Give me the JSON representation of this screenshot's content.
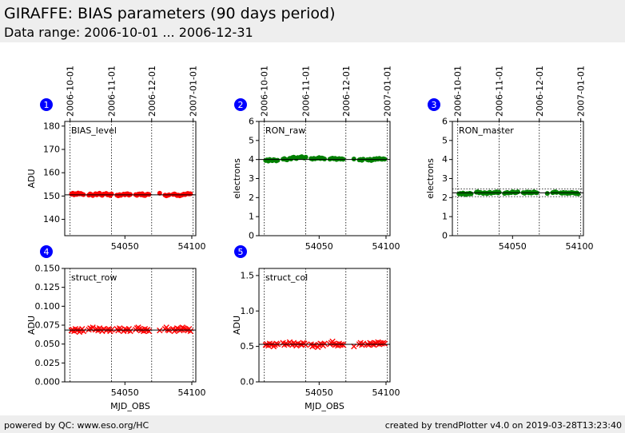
{
  "header": {
    "title": "GIRAFFE: BIAS parameters (90 days period)",
    "subtitle": "Data range: 2006-10-01 ... 2006-12-31"
  },
  "footer": {
    "left": "powered by QC: www.eso.org/HC",
    "right": "created by trendPlotter v4.0 on 2019-03-28T13:23:40"
  },
  "colors": {
    "marker_red": "#ff0000",
    "marker_green": "#008000",
    "badge": "#0000ff"
  },
  "chart_data": [
    {
      "id": 1,
      "type": "scatter",
      "label": "BIAS_level",
      "ylabel": "ADU",
      "xlabel": "",
      "marker": "circle",
      "color": "#ff0000",
      "xlim": [
        54005,
        54103
      ],
      "ylim": [
        133,
        182
      ],
      "yticks": [
        "140",
        "150",
        "160",
        "170",
        "180"
      ],
      "ytick_values": [
        140,
        150,
        160,
        170,
        180
      ],
      "xticks": [
        "54050",
        "54100"
      ],
      "xtick_values": [
        54050,
        54100
      ],
      "show_xtick_labels": true,
      "date_ticks": [
        "2006-10-01",
        "2006-11-01",
        "2006-12-01",
        "2007-01-01"
      ],
      "show_date_ticks": true,
      "hlines": [
        150.5
      ],
      "hlines_dotted": [],
      "x": [
        54010,
        54011,
        54012,
        54013,
        54014,
        54015,
        54016,
        54017,
        54018,
        54019,
        54023,
        54024,
        54025,
        54026,
        54028,
        54029,
        54030,
        54031,
        54032,
        54033,
        54034,
        54036,
        54037,
        54038,
        54039,
        54040,
        54044,
        54045,
        54046,
        54047,
        54049,
        54050,
        54051,
        54052,
        54053,
        54054,
        54058,
        54059,
        54060,
        54061,
        54062,
        54063,
        54064,
        54065,
        54066,
        54067,
        54068,
        54076,
        54080,
        54081,
        54082,
        54083,
        54086,
        54087,
        54088,
        54089,
        54090,
        54091,
        54092,
        54093,
        54094,
        54095,
        54096,
        54097,
        54098,
        54099
      ],
      "y": [
        150.8,
        151.2,
        150.5,
        151.0,
        150.7,
        151.3,
        150.9,
        151.1,
        150.8,
        150.6,
        150.4,
        150.9,
        150.6,
        150.2,
        151.0,
        150.5,
        150.9,
        151.2,
        150.6,
        150.3,
        150.8,
        151.1,
        150.5,
        150.7,
        150.2,
        150.9,
        150.4,
        150.1,
        150.6,
        150.3,
        150.8,
        150.5,
        150.9,
        151.0,
        150.4,
        150.7,
        150.6,
        150.3,
        150.8,
        150.9,
        150.5,
        151.0,
        150.3,
        150.2,
        150.6,
        150.8,
        150.7,
        151.2,
        150.4,
        150.1,
        150.3,
        150.5,
        150.7,
        150.9,
        150.6,
        150.2,
        150.4,
        150.1,
        150.3,
        150.5,
        150.8,
        150.6,
        150.9,
        151.1,
        150.9,
        151.0
      ]
    },
    {
      "id": 2,
      "type": "scatter",
      "label": "RON_raw",
      "ylabel": "electrons",
      "xlabel": "",
      "marker": "circle",
      "color": "#008000",
      "xlim": [
        54005,
        54103
      ],
      "ylim": [
        0,
        6
      ],
      "yticks": [
        "0",
        "1",
        "2",
        "3",
        "4",
        "5",
        "6"
      ],
      "ytick_values": [
        0,
        1,
        2,
        3,
        4,
        5,
        6
      ],
      "xticks": [
        "54050",
        "54100"
      ],
      "xtick_values": [
        54050,
        54100
      ],
      "show_xtick_labels": true,
      "date_ticks": [
        "2006-10-01",
        "2006-11-01",
        "2006-12-01",
        "2007-01-01"
      ],
      "show_date_ticks": true,
      "hlines": [
        4.0
      ],
      "hlines_dotted": [],
      "x": [
        54010,
        54011,
        54012,
        54013,
        54014,
        54015,
        54016,
        54017,
        54018,
        54019,
        54023,
        54024,
        54025,
        54026,
        54028,
        54029,
        54030,
        54031,
        54032,
        54033,
        54034,
        54036,
        54037,
        54038,
        54039,
        54040,
        54044,
        54045,
        54046,
        54047,
        54049,
        54050,
        54051,
        54052,
        54053,
        54054,
        54058,
        54059,
        54060,
        54061,
        54062,
        54063,
        54064,
        54065,
        54066,
        54067,
        54068,
        54076,
        54080,
        54081,
        54082,
        54083,
        54086,
        54087,
        54088,
        54089,
        54090,
        54091,
        54092,
        54093,
        54094,
        54095,
        54096,
        54097,
        54098,
        54099
      ],
      "y": [
        3.95,
        3.98,
        3.92,
        4.0,
        3.96,
        3.94,
        3.99,
        3.97,
        3.93,
        3.96,
        4.02,
        4.05,
        4.0,
        3.98,
        4.06,
        4.03,
        4.1,
        4.12,
        4.08,
        4.05,
        4.1,
        4.12,
        4.15,
        4.1,
        4.08,
        4.12,
        4.05,
        4.02,
        4.06,
        4.04,
        4.07,
        4.1,
        4.05,
        4.08,
        4.06,
        4.03,
        4.02,
        4.05,
        4.07,
        4.04,
        4.06,
        4.0,
        4.03,
        4.05,
        4.02,
        4.04,
        4.01,
        4.03,
        3.98,
        4.0,
        3.96,
        4.02,
        3.99,
        3.97,
        4.01,
        3.95,
        3.98,
        4.03,
        4.0,
        4.05,
        4.02,
        4.06,
        4.03,
        4.01,
        4.04,
        4.02
      ]
    },
    {
      "id": 3,
      "type": "scatter",
      "label": "RON_master",
      "ylabel": "electrons",
      "xlabel": "",
      "marker": "circle",
      "color": "#008000",
      "xlim": [
        54005,
        54103
      ],
      "ylim": [
        0,
        6
      ],
      "yticks": [
        "0",
        "1",
        "2",
        "3",
        "4",
        "5",
        "6"
      ],
      "ytick_values": [
        0,
        1,
        2,
        3,
        4,
        5,
        6
      ],
      "xticks": [
        "54050",
        "54100"
      ],
      "xtick_values": [
        54050,
        54100
      ],
      "show_xtick_labels": true,
      "date_ticks": [
        "2006-10-01",
        "2006-11-01",
        "2006-12-01",
        "2007-01-01"
      ],
      "show_date_ticks": true,
      "hlines": [
        2.25
      ],
      "hlines_dotted": [
        2.05,
        2.45
      ],
      "x": [
        54010,
        54011,
        54012,
        54013,
        54014,
        54015,
        54016,
        54017,
        54018,
        54019,
        54023,
        54024,
        54025,
        54026,
        54028,
        54029,
        54030,
        54031,
        54032,
        54033,
        54034,
        54036,
        54037,
        54038,
        54039,
        54040,
        54044,
        54045,
        54046,
        54047,
        54049,
        54050,
        54051,
        54052,
        54053,
        54054,
        54058,
        54059,
        54060,
        54061,
        54062,
        54063,
        54064,
        54065,
        54066,
        54067,
        54068,
        54076,
        54080,
        54081,
        54082,
        54083,
        54086,
        54087,
        54088,
        54089,
        54090,
        54091,
        54092,
        54093,
        54094,
        54095,
        54096,
        54097,
        54098,
        54099
      ],
      "y": [
        2.2,
        2.22,
        2.18,
        2.24,
        2.2,
        2.16,
        2.21,
        2.19,
        2.23,
        2.2,
        2.28,
        2.3,
        2.25,
        2.27,
        2.22,
        2.26,
        2.24,
        2.21,
        2.25,
        2.28,
        2.23,
        2.26,
        2.27,
        2.3,
        2.25,
        2.28,
        2.22,
        2.25,
        2.27,
        2.24,
        2.26,
        2.3,
        2.28,
        2.25,
        2.27,
        2.3,
        2.26,
        2.23,
        2.27,
        2.29,
        2.25,
        2.28,
        2.24,
        2.26,
        2.3,
        2.27,
        2.25,
        2.22,
        2.26,
        2.28,
        2.3,
        2.27,
        2.25,
        2.23,
        2.27,
        2.24,
        2.26,
        2.22,
        2.25,
        2.23,
        2.27,
        2.26,
        2.24,
        2.22,
        2.25,
        2.2
      ]
    },
    {
      "id": 4,
      "type": "scatter",
      "label": "struct_row",
      "ylabel": "ADU",
      "xlabel": "MJD_OBS",
      "marker": "x",
      "color": "#ff0000",
      "xlim": [
        54005,
        54103
      ],
      "ylim": [
        0,
        0.15
      ],
      "yticks": [
        "0.000",
        "0.025",
        "0.050",
        "0.075",
        "0.100",
        "0.125",
        "0.150"
      ],
      "ytick_values": [
        0,
        0.025,
        0.05,
        0.075,
        0.1,
        0.125,
        0.15
      ],
      "xticks": [
        "54050",
        "54100"
      ],
      "xtick_values": [
        54050,
        54100
      ],
      "show_xtick_labels": true,
      "date_ticks": [],
      "show_date_ticks": false,
      "hlines": [
        0.0685
      ],
      "hlines_dotted": [],
      "x": [
        54010,
        54011,
        54012,
        54013,
        54014,
        54015,
        54016,
        54017,
        54018,
        54019,
        54023,
        54024,
        54025,
        54026,
        54028,
        54029,
        54030,
        54031,
        54032,
        54033,
        54034,
        54036,
        54037,
        54038,
        54039,
        54040,
        54044,
        54045,
        54046,
        54047,
        54049,
        54050,
        54051,
        54052,
        54053,
        54054,
        54058,
        54059,
        54060,
        54061,
        54062,
        54063,
        54064,
        54065,
        54066,
        54067,
        54068,
        54076,
        54080,
        54081,
        54082,
        54083,
        54086,
        54087,
        54088,
        54089,
        54090,
        54091,
        54092,
        54093,
        54094,
        54095,
        54096,
        54097,
        54098,
        54099
      ],
      "y": [
        0.068,
        0.069,
        0.067,
        0.07,
        0.068,
        0.069,
        0.066,
        0.068,
        0.07,
        0.067,
        0.069,
        0.071,
        0.07,
        0.072,
        0.069,
        0.07,
        0.068,
        0.071,
        0.069,
        0.067,
        0.07,
        0.068,
        0.069,
        0.07,
        0.067,
        0.069,
        0.07,
        0.068,
        0.071,
        0.069,
        0.067,
        0.07,
        0.069,
        0.068,
        0.07,
        0.067,
        0.069,
        0.071,
        0.072,
        0.07,
        0.068,
        0.069,
        0.067,
        0.07,
        0.068,
        0.069,
        0.067,
        0.068,
        0.07,
        0.072,
        0.069,
        0.068,
        0.07,
        0.067,
        0.069,
        0.071,
        0.07,
        0.068,
        0.069,
        0.072,
        0.071,
        0.07,
        0.069,
        0.068,
        0.07,
        0.067
      ]
    },
    {
      "id": 5,
      "type": "scatter",
      "label": "struct_col",
      "ylabel": "ADU",
      "xlabel": "MJD_OBS",
      "marker": "x",
      "color": "#ff0000",
      "xlim": [
        54005,
        54103
      ],
      "ylim": [
        0,
        1.6
      ],
      "yticks": [
        "0.0",
        "0.5",
        "1.0",
        "1.5"
      ],
      "ytick_values": [
        0,
        0.5,
        1.0,
        1.5
      ],
      "xticks": [
        "54050",
        "54100"
      ],
      "xtick_values": [
        54050,
        54100
      ],
      "show_xtick_labels": true,
      "date_ticks": [],
      "show_date_ticks": false,
      "hlines": [
        0.53
      ],
      "hlines_dotted": [],
      "x": [
        54010,
        54011,
        54012,
        54013,
        54014,
        54015,
        54016,
        54017,
        54018,
        54019,
        54023,
        54024,
        54025,
        54026,
        54028,
        54029,
        54030,
        54031,
        54032,
        54033,
        54034,
        54036,
        54037,
        54038,
        54039,
        54040,
        54044,
        54045,
        54046,
        54047,
        54049,
        54050,
        54051,
        54052,
        54053,
        54054,
        54058,
        54059,
        54060,
        54061,
        54062,
        54063,
        54064,
        54065,
        54066,
        54067,
        54068,
        54076,
        54080,
        54081,
        54082,
        54083,
        54086,
        54087,
        54088,
        54089,
        54090,
        54091,
        54092,
        54093,
        54094,
        54095,
        54096,
        54097,
        54098,
        54099
      ],
      "y": [
        0.52,
        0.53,
        0.51,
        0.54,
        0.52,
        0.53,
        0.5,
        0.52,
        0.54,
        0.53,
        0.55,
        0.52,
        0.54,
        0.53,
        0.56,
        0.54,
        0.52,
        0.55,
        0.53,
        0.51,
        0.54,
        0.53,
        0.52,
        0.55,
        0.54,
        0.52,
        0.53,
        0.5,
        0.52,
        0.51,
        0.49,
        0.52,
        0.54,
        0.53,
        0.51,
        0.54,
        0.53,
        0.55,
        0.57,
        0.54,
        0.52,
        0.53,
        0.51,
        0.54,
        0.52,
        0.53,
        0.52,
        0.5,
        0.53,
        0.55,
        0.52,
        0.54,
        0.53,
        0.52,
        0.55,
        0.54,
        0.53,
        0.52,
        0.55,
        0.54,
        0.56,
        0.53,
        0.55,
        0.54,
        0.55,
        0.54
      ]
    }
  ]
}
